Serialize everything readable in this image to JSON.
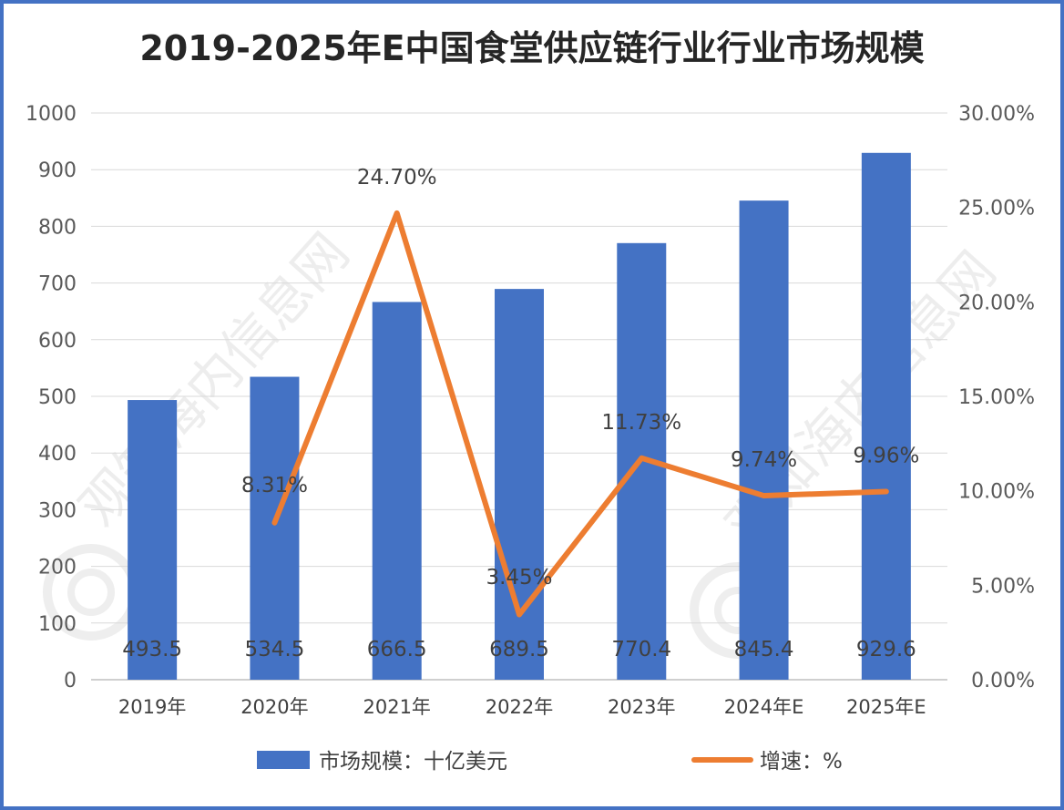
{
  "title": "2019-2025年E中国食堂供应链行业行业市场规模",
  "chart_data": {
    "type": "bar",
    "categories": [
      "2019年",
      "2020年",
      "2021年",
      "2022年",
      "2023年",
      "2024年E",
      "2025年E"
    ],
    "series": [
      {
        "name": "市场规模：十亿美元",
        "type": "bar",
        "axis": "left",
        "color": "#4472c4",
        "values": [
          493.5,
          534.5,
          666.5,
          689.5,
          770.4,
          845.4,
          929.6
        ],
        "labels": [
          "493.5",
          "534.5",
          "666.5",
          "689.5",
          "770.4",
          "845.4",
          "929.6"
        ]
      },
      {
        "name": "增速：%",
        "type": "line",
        "axis": "right",
        "color": "#ed7d31",
        "values": [
          null,
          8.31,
          24.7,
          3.45,
          11.73,
          9.74,
          9.96
        ],
        "labels": [
          "",
          "8.31%",
          "24.70%",
          "3.45%",
          "11.73%",
          "9.74%",
          "9.96%"
        ]
      }
    ],
    "y_left": {
      "ylim": [
        0,
        1000
      ],
      "ticks": [
        0,
        100,
        200,
        300,
        400,
        500,
        600,
        700,
        800,
        900,
        1000
      ],
      "tick_labels": [
        "0",
        "100",
        "200",
        "300",
        "400",
        "500",
        "600",
        "700",
        "800",
        "900",
        "1000"
      ]
    },
    "y_right": {
      "ylim": [
        0,
        30
      ],
      "ticks": [
        0,
        5,
        10,
        15,
        20,
        25,
        30
      ],
      "tick_labels": [
        "0.00%",
        "5.00%",
        "10.00%",
        "15.00%",
        "20.00%",
        "25.00%",
        "30.00%"
      ]
    },
    "grid": true,
    "legend": "bottom",
    "watermark": "观知海内信息网"
  }
}
